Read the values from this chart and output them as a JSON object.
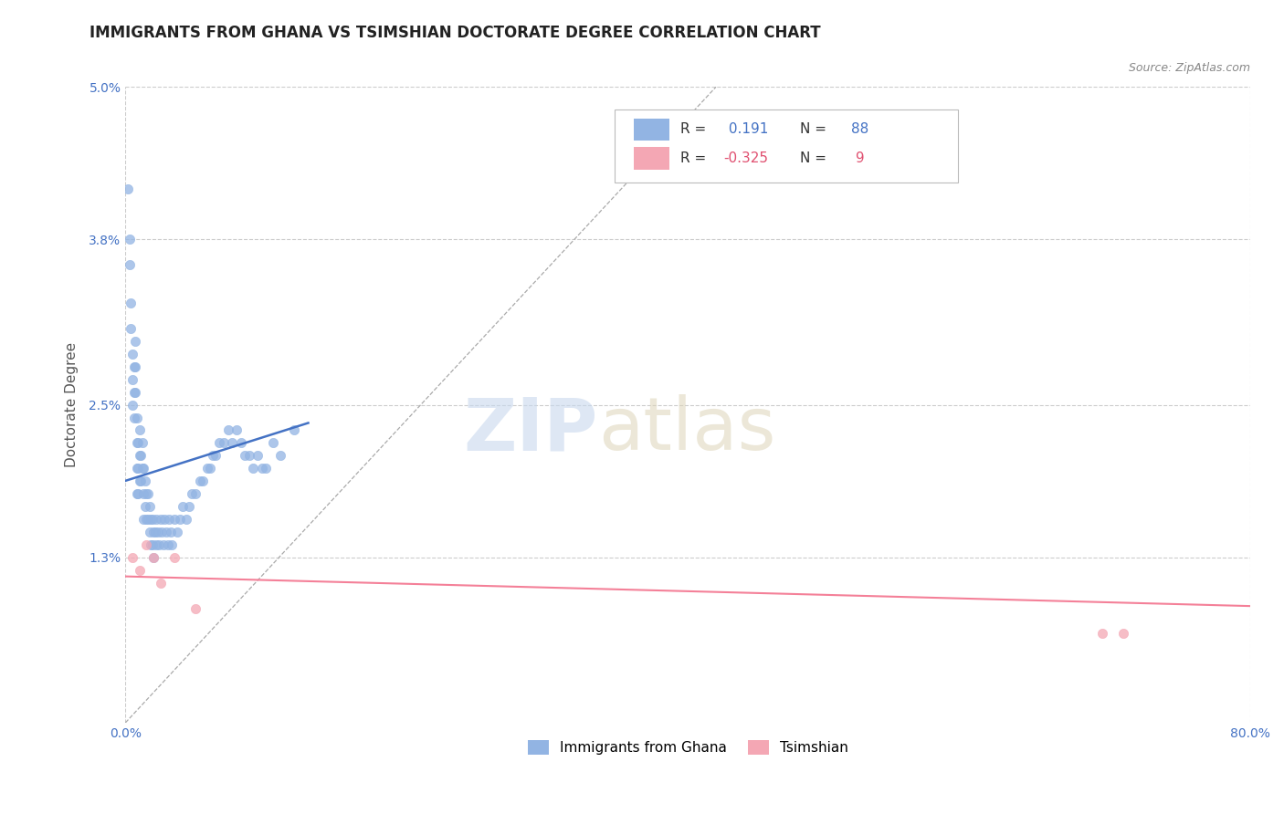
{
  "title": "IMMIGRANTS FROM GHANA VS TSIMSHIAN DOCTORATE DEGREE CORRELATION CHART",
  "source_text": "Source: ZipAtlas.com",
  "ylabel": "Doctorate Degree",
  "xlim": [
    0.0,
    0.8
  ],
  "ylim": [
    0.0,
    0.05
  ],
  "y_tick_values": [
    0.0,
    0.013,
    0.025,
    0.038,
    0.05
  ],
  "y_tick_labels": [
    "",
    "1.3%",
    "2.5%",
    "3.8%",
    "5.0%"
  ],
  "ghana_R": 0.191,
  "ghana_N": 88,
  "tsimshian_R": -0.325,
  "tsimshian_N": 9,
  "ghana_color": "#92b4e3",
  "tsimshian_color": "#f4a7b4",
  "ghana_line_color": "#4472c4",
  "tsimshian_line_color": "#f48098",
  "background_color": "#ffffff",
  "grid_color": "#cccccc",
  "title_color": "#222222",
  "title_fontsize": 12,
  "axis_label_fontsize": 11,
  "tick_label_fontsize": 10,
  "source_fontsize": 9,
  "legend_fontsize": 11,
  "ghana_x": [
    0.002,
    0.003,
    0.003,
    0.004,
    0.004,
    0.005,
    0.005,
    0.005,
    0.006,
    0.006,
    0.006,
    0.007,
    0.007,
    0.007,
    0.008,
    0.008,
    0.008,
    0.008,
    0.009,
    0.009,
    0.009,
    0.01,
    0.01,
    0.01,
    0.011,
    0.011,
    0.012,
    0.012,
    0.013,
    0.013,
    0.013,
    0.014,
    0.014,
    0.015,
    0.015,
    0.016,
    0.016,
    0.017,
    0.017,
    0.018,
    0.018,
    0.019,
    0.019,
    0.02,
    0.02,
    0.021,
    0.022,
    0.022,
    0.023,
    0.024,
    0.025,
    0.026,
    0.027,
    0.028,
    0.029,
    0.03,
    0.031,
    0.032,
    0.033,
    0.035,
    0.037,
    0.039,
    0.041,
    0.043,
    0.045,
    0.047,
    0.05,
    0.053,
    0.055,
    0.058,
    0.06,
    0.062,
    0.064,
    0.067,
    0.07,
    0.073,
    0.076,
    0.079,
    0.082,
    0.085,
    0.088,
    0.091,
    0.094,
    0.097,
    0.1,
    0.105,
    0.11,
    0.12
  ],
  "ghana_y": [
    0.042,
    0.036,
    0.038,
    0.033,
    0.031,
    0.029,
    0.027,
    0.025,
    0.028,
    0.026,
    0.024,
    0.03,
    0.028,
    0.026,
    0.024,
    0.022,
    0.02,
    0.018,
    0.022,
    0.02,
    0.018,
    0.023,
    0.021,
    0.019,
    0.021,
    0.019,
    0.022,
    0.02,
    0.02,
    0.018,
    0.016,
    0.019,
    0.017,
    0.018,
    0.016,
    0.018,
    0.016,
    0.017,
    0.015,
    0.016,
    0.014,
    0.016,
    0.014,
    0.015,
    0.013,
    0.015,
    0.016,
    0.014,
    0.015,
    0.014,
    0.016,
    0.015,
    0.014,
    0.016,
    0.015,
    0.014,
    0.016,
    0.015,
    0.014,
    0.016,
    0.015,
    0.016,
    0.017,
    0.016,
    0.017,
    0.018,
    0.018,
    0.019,
    0.019,
    0.02,
    0.02,
    0.021,
    0.021,
    0.022,
    0.022,
    0.023,
    0.022,
    0.023,
    0.022,
    0.021,
    0.021,
    0.02,
    0.021,
    0.02,
    0.02,
    0.022,
    0.021,
    0.023
  ],
  "tsim_x": [
    0.005,
    0.01,
    0.015,
    0.02,
    0.025,
    0.035,
    0.05,
    0.695,
    0.71
  ],
  "tsim_y": [
    0.013,
    0.012,
    0.014,
    0.013,
    0.011,
    0.013,
    0.009,
    0.007,
    0.007
  ]
}
